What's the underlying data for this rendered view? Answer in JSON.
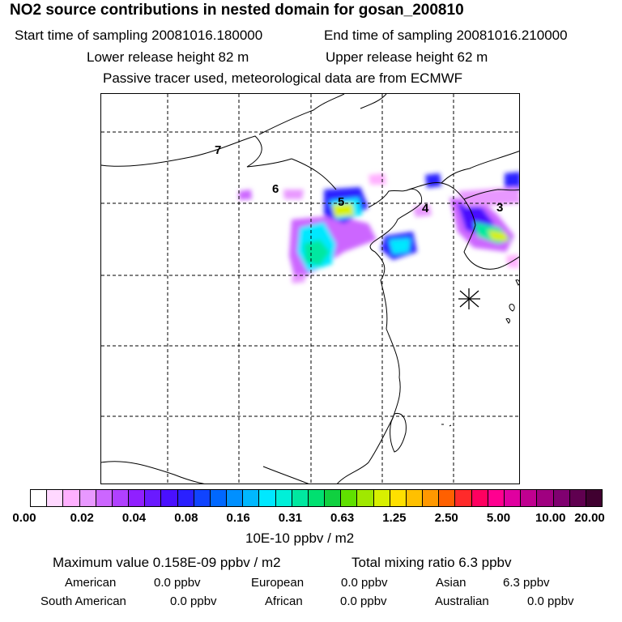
{
  "header": {
    "title": "NO2 source contributions in nested domain for gosan_200810",
    "start_time": "Start time of sampling 20081016.180000",
    "end_time": "End time of sampling 20081016.210000",
    "lower_release": "Lower release height   82 m",
    "upper_release": "Upper release height   62 m",
    "note": "Passive tracer used, meteorological data are from ECMWF"
  },
  "map": {
    "region_labels": [
      "7",
      "6",
      "5",
      "4",
      "3"
    ],
    "receptor_marker": "asterisk-icon"
  },
  "colorbar": {
    "colors": [
      "#ffffff",
      "#ffd8ff",
      "#ffb0ff",
      "#e898ff",
      "#cc66ff",
      "#b040ff",
      "#9020ff",
      "#6a1aff",
      "#4a10ff",
      "#2a20ff",
      "#1044ff",
      "#0068ff",
      "#0090ff",
      "#00b8ff",
      "#00e8ff",
      "#00f0d8",
      "#00e8a0",
      "#00e070",
      "#10d040",
      "#60e000",
      "#a0e800",
      "#d8f000",
      "#ffe000",
      "#ffc000",
      "#ff9800",
      "#ff6000",
      "#ff2a2a",
      "#ff0060",
      "#ff0090",
      "#e000a0",
      "#c00090",
      "#a00080",
      "#800070",
      "#600050",
      "#400030"
    ],
    "tick_labels": [
      "0.00",
      "0.02",
      "0.04",
      "0.08",
      "0.16",
      "0.31",
      "0.63",
      "1.25",
      "2.50",
      "5.00",
      "10.00",
      "20.00"
    ],
    "unit": "10E-10 ppbv / m2"
  },
  "summary": {
    "max_value": "Maximum value  0.158E-09 ppbv / m2",
    "total_mixing": "Total mixing ratio       6.3 ppbv",
    "rows": [
      [
        {
          "k": "American",
          "v": "0.0 ppbv"
        },
        {
          "k": "European",
          "v": "0.0 ppbv"
        },
        {
          "k": "Asian",
          "v": "6.3 ppbv"
        }
      ],
      [
        {
          "k": "South American",
          "v": "0.0 ppbv"
        },
        {
          "k": "African",
          "v": "0.0 ppbv"
        },
        {
          "k": "Australian",
          "v": "0.0 ppbv"
        }
      ]
    ]
  }
}
